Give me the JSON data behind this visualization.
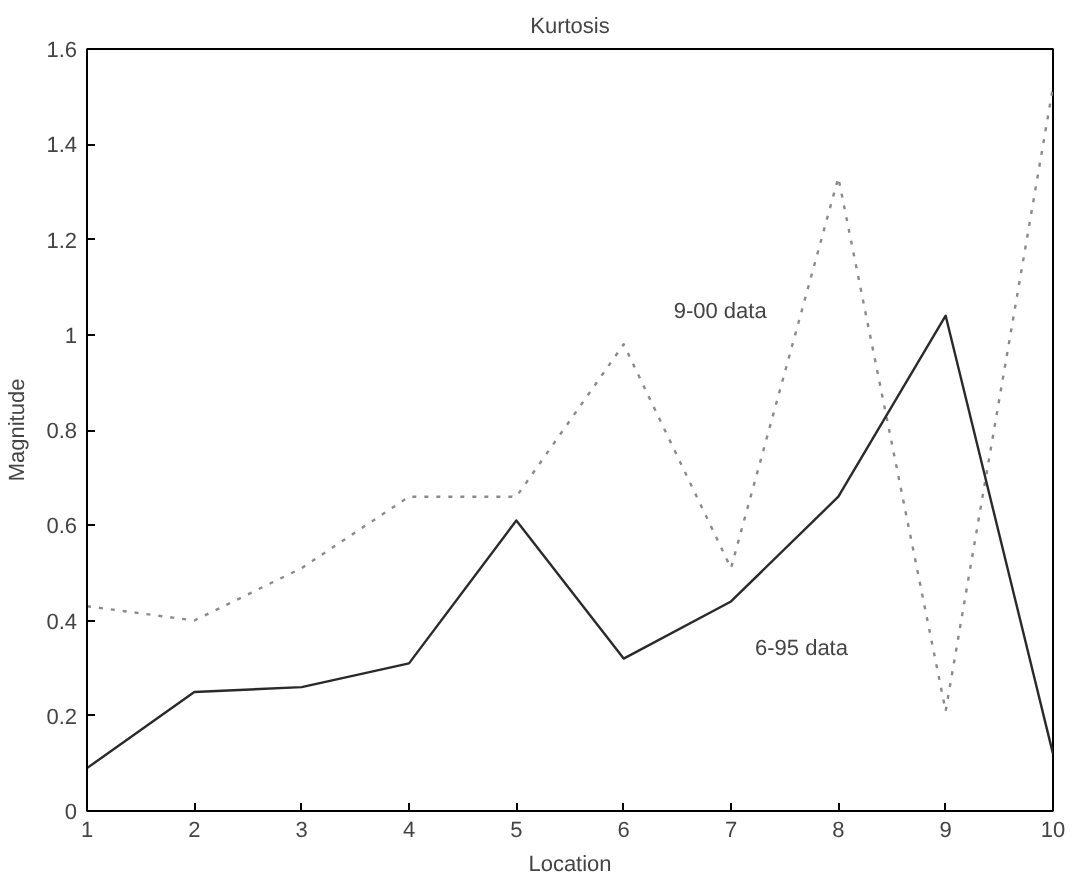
{
  "chart_data": {
    "type": "line",
    "title": "Kurtosis",
    "xlabel": "Location",
    "ylabel": "Magnitude",
    "x": [
      1,
      2,
      3,
      4,
      5,
      6,
      7,
      8,
      9,
      10
    ],
    "series": [
      {
        "name": "9-00 data",
        "color": "#8a8a8a",
        "line_style": "dotted",
        "values": [
          0.43,
          0.4,
          0.51,
          0.66,
          0.66,
          0.98,
          0.51,
          1.33,
          0.21,
          1.52
        ]
      },
      {
        "name": "6-95 data",
        "color": "#2a2a2a",
        "line_style": "solid",
        "values": [
          0.09,
          0.25,
          0.26,
          0.31,
          0.61,
          0.32,
          0.44,
          0.66,
          1.04,
          0.12
        ]
      }
    ],
    "xlim": [
      1,
      10
    ],
    "ylim": [
      0,
      1.6
    ],
    "xticks": [
      1,
      2,
      3,
      4,
      5,
      6,
      7,
      8,
      9,
      10
    ],
    "yticks": [
      0,
      {
        "value": 0.2,
        "label": "0.2"
      },
      {
        "value": 0.4,
        "label": "0.4"
      },
      {
        "value": 0.6,
        "label": "0.6"
      },
      {
        "value": 0.8,
        "label": "0.8"
      },
      1,
      {
        "value": 1.2,
        "label": "1.2"
      },
      {
        "value": 1.4,
        "label": "1.4"
      },
      {
        "value": 1.6,
        "label": "1.6"
      }
    ],
    "grid": false
  }
}
